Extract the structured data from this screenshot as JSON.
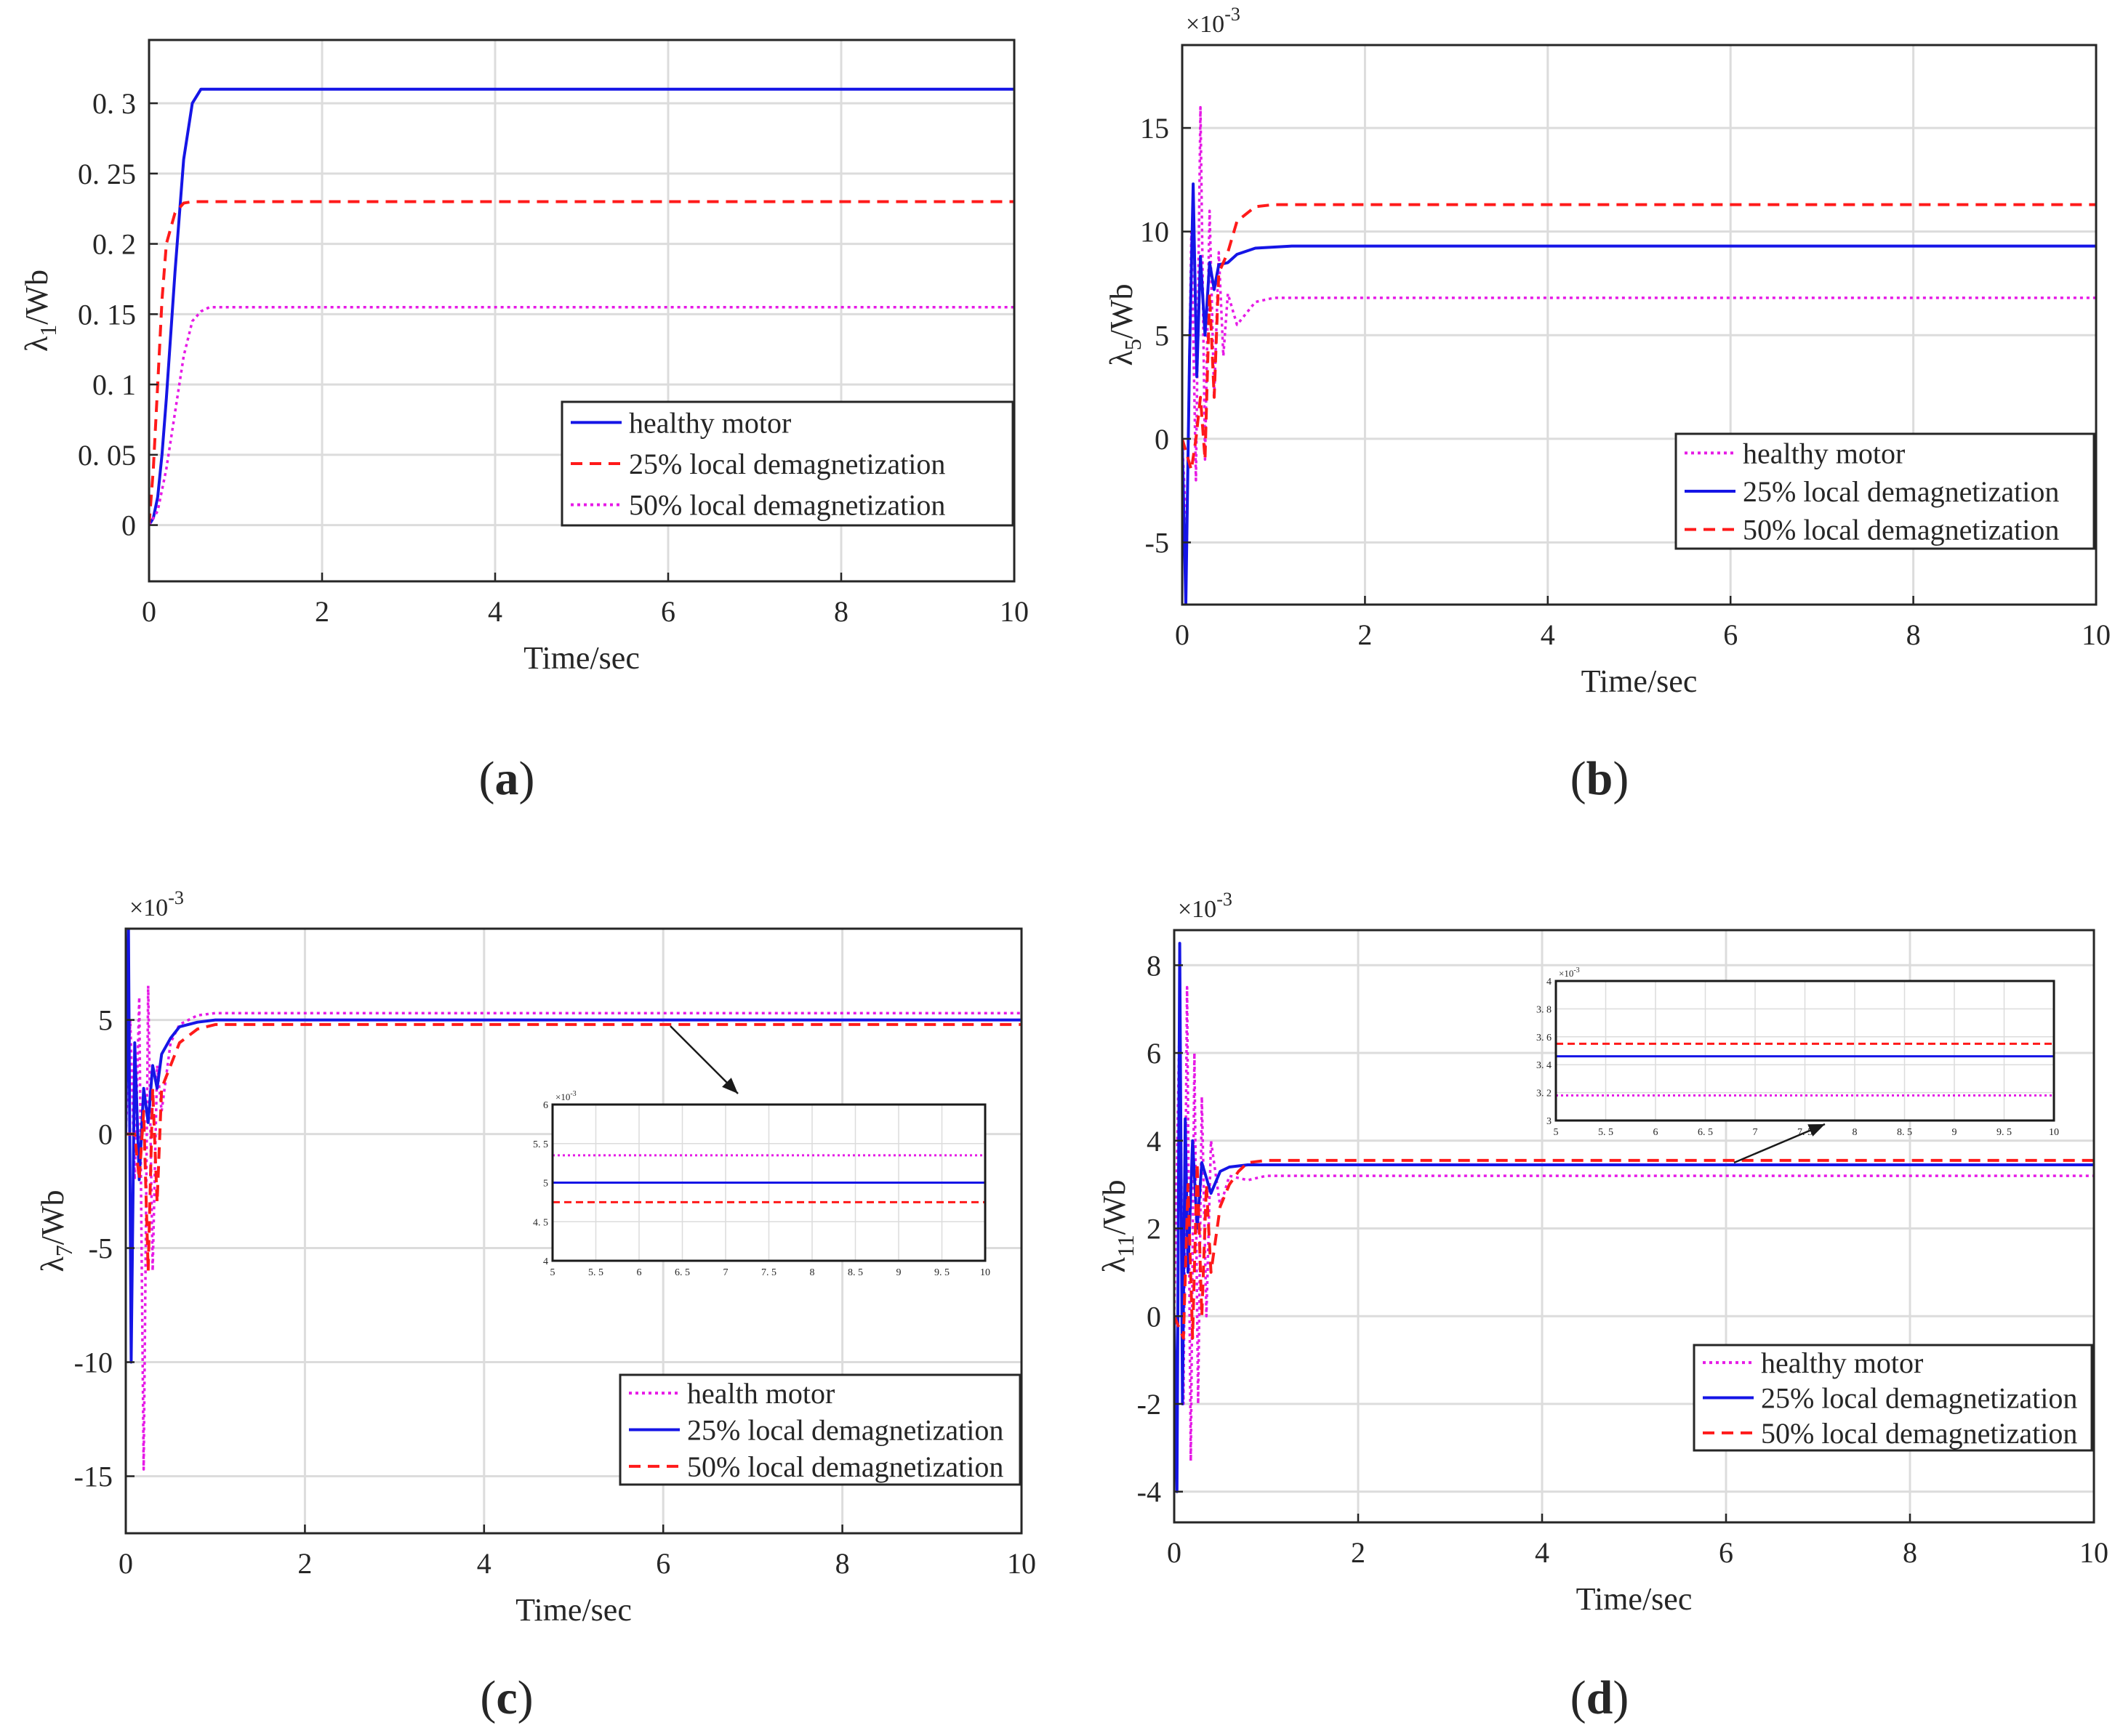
{
  "figure": {
    "panels": [
      {
        "id": "a",
        "label": "(a)",
        "label_letter": "a",
        "chart_data": {
          "type": "line",
          "xlabel": "Time/sec",
          "ylabel": "λ1/Wb",
          "ylabel_main": "λ",
          "ylabel_sub": "1",
          "ylabel_unit": "/Wb",
          "exponent": "",
          "xlim": [
            0,
            10
          ],
          "ylim": [
            -0.04,
            0.345
          ],
          "x_ticks": [
            0,
            2,
            4,
            6,
            8,
            10
          ],
          "x_tick_labels": [
            "0",
            "2",
            "4",
            "6",
            "8",
            "10"
          ],
          "y_ticks": [
            0,
            0.05,
            0.1,
            0.15,
            0.2,
            0.25,
            0.3
          ],
          "y_tick_labels": [
            "0",
            "0. 05",
            "0. 1",
            "0. 15",
            "0. 2",
            "0. 25",
            "0. 3"
          ],
          "grid": true,
          "legend_position": "right",
          "series": [
            {
              "name": "healthy motor",
              "color": "#1515e6",
              "style": "solid",
              "final": 0.31,
              "kind": "smooth",
              "rise": 0.6,
              "x": [
                0,
                0.05,
                0.1,
                0.15,
                0.2,
                0.3,
                0.4,
                0.5,
                0.6,
                1,
                10
              ],
              "y": [
                0,
                0.005,
                0.02,
                0.05,
                0.09,
                0.18,
                0.26,
                0.3,
                0.31,
                0.31,
                0.31
              ]
            },
            {
              "name": "25% local demagnetization",
              "color": "#ff1a1a",
              "style": "dashed",
              "final": 0.23,
              "kind": "smooth",
              "rise": 0.35,
              "x": [
                0,
                0.05,
                0.1,
                0.15,
                0.2,
                0.3,
                0.4,
                0.5,
                1,
                10
              ],
              "y": [
                0,
                0.04,
                0.1,
                0.16,
                0.2,
                0.222,
                0.229,
                0.23,
                0.23,
                0.23
              ]
            },
            {
              "name": "50% local demagnetization",
              "color": "#e61ae6",
              "style": "dotted",
              "final": 0.155,
              "kind": "smooth",
              "rise": 0.6,
              "x": [
                0,
                0.1,
                0.2,
                0.3,
                0.4,
                0.5,
                0.6,
                0.7,
                1,
                10
              ],
              "y": [
                0,
                0.01,
                0.04,
                0.08,
                0.12,
                0.145,
                0.152,
                0.155,
                0.155,
                0.155
              ]
            }
          ]
        }
      },
      {
        "id": "b",
        "label": "(b)",
        "label_letter": "b",
        "chart_data": {
          "type": "line",
          "xlabel": "Time/sec",
          "ylabel": "λ5/Wb",
          "ylabel_main": "λ",
          "ylabel_sub": "5",
          "ylabel_unit": "/Wb",
          "exponent": "×10^-3",
          "exponent_base": "×10",
          "exponent_power": "-3",
          "xlim": [
            0,
            10
          ],
          "ylim": [
            -8,
            19
          ],
          "x_ticks": [
            0,
            2,
            4,
            6,
            8,
            10
          ],
          "x_tick_labels": [
            "0",
            "2",
            "4",
            "6",
            "8",
            "10"
          ],
          "y_ticks": [
            -5,
            0,
            5,
            10,
            15
          ],
          "y_tick_labels": [
            "-5",
            "0",
            "5",
            "10",
            "15"
          ],
          "grid": true,
          "legend_position": "bottom-right",
          "series": [
            {
              "name": "healthy motor",
              "color": "#e61ae6",
              "style": "dotted",
              "final": 6.8,
              "kind": "osc",
              "x": [
                0,
                0.05,
                0.1,
                0.15,
                0.2,
                0.25,
                0.3,
                0.35,
                0.4,
                0.45,
                0.5,
                0.6,
                0.8,
                1,
                10
              ],
              "y": [
                0,
                -5,
                10,
                -2,
                16,
                -1,
                11,
                2,
                9,
                4,
                7,
                5.5,
                6.6,
                6.8,
                6.8
              ]
            },
            {
              "name": "25% local demagnetization",
              "color": "#1515e6",
              "style": "solid",
              "final": 9.3,
              "kind": "osc",
              "x": [
                0,
                0.04,
                0.08,
                0.12,
                0.16,
                0.2,
                0.25,
                0.3,
                0.35,
                0.4,
                0.5,
                0.6,
                0.8,
                1.2,
                10
              ],
              "y": [
                0,
                -8,
                4,
                12.3,
                3,
                8.8,
                5,
                8.5,
                7.2,
                8.4,
                8.5,
                8.9,
                9.2,
                9.3,
                9.3
              ]
            },
            {
              "name": "50% local demagnetization",
              "color": "#ff1a1a",
              "style": "dashed",
              "final": 11.3,
              "kind": "osc",
              "x": [
                0,
                0.1,
                0.15,
                0.2,
                0.25,
                0.3,
                0.35,
                0.4,
                0.5,
                0.6,
                0.8,
                1,
                10
              ],
              "y": [
                0,
                -1.5,
                0,
                2,
                -1,
                7,
                2,
                8,
                9,
                10.5,
                11.2,
                11.3,
                11.3
              ]
            }
          ]
        }
      },
      {
        "id": "c",
        "label": "(c)",
        "label_letter": "c",
        "chart_data": {
          "type": "line",
          "xlabel": "Time/sec",
          "ylabel": "λ7/Wb",
          "ylabel_main": "λ",
          "ylabel_sub": "7",
          "ylabel_unit": "/Wb",
          "exponent": "×10^-3",
          "exponent_base": "×10",
          "exponent_power": "-3",
          "xlim": [
            0,
            10
          ],
          "ylim": [
            -17.5,
            9
          ],
          "x_ticks": [
            0,
            2,
            4,
            6,
            8,
            10
          ],
          "x_tick_labels": [
            "0",
            "2",
            "4",
            "6",
            "8",
            "10"
          ],
          "y_ticks": [
            -15,
            -10,
            -5,
            0,
            5
          ],
          "y_tick_labels": [
            "-15",
            "-10",
            "-5",
            "0",
            "5"
          ],
          "grid": true,
          "legend_position": "bottom-right",
          "series": [
            {
              "name": "health motor",
              "color": "#e61ae6",
              "style": "dotted",
              "final": 5.3,
              "kind": "osc",
              "x": [
                0,
                0.05,
                0.1,
                0.15,
                0.2,
                0.25,
                0.3,
                0.35,
                0.4,
                0.5,
                0.6,
                0.8,
                1,
                10
              ],
              "y": [
                0,
                5,
                -2,
                6,
                -14.7,
                6.5,
                -6,
                3,
                1,
                4,
                4.8,
                5.2,
                5.3,
                5.3
              ]
            },
            {
              "name": "25% local demagnetization",
              "color": "#1515e6",
              "style": "solid",
              "final": 5.0,
              "kind": "osc",
              "x": [
                0,
                0.03,
                0.06,
                0.1,
                0.15,
                0.2,
                0.25,
                0.3,
                0.35,
                0.4,
                0.5,
                0.6,
                0.8,
                1,
                10
              ],
              "y": [
                0,
                9,
                -10,
                4,
                -2,
                2,
                0.5,
                3,
                2,
                3.5,
                4.2,
                4.7,
                4.9,
                5.0,
                5.0
              ]
            },
            {
              "name": "50% local demagnetization",
              "color": "#ff1a1a",
              "style": "dashed",
              "final": 4.8,
              "kind": "osc",
              "x": [
                0,
                0.1,
                0.15,
                0.2,
                0.25,
                0.3,
                0.35,
                0.4,
                0.5,
                0.6,
                0.8,
                1,
                10
              ],
              "y": [
                0,
                0,
                -2,
                1,
                -6,
                2,
                -3,
                2,
                3,
                4,
                4.6,
                4.8,
                4.8
              ]
            }
          ],
          "inset": {
            "xlim": [
              5,
              10
            ],
            "ylim": [
              4,
              6
            ],
            "x_ticks": [
              5,
              5.5,
              6,
              6.5,
              7,
              7.5,
              8,
              8.5,
              9,
              9.5,
              10
            ],
            "x_tick_labels": [
              "5",
              "5. 5",
              "6",
              "6. 5",
              "7",
              "7. 5",
              "8",
              "8. 5",
              "9",
              "9. 5",
              "10"
            ],
            "y_ticks": [
              4,
              4.5,
              5,
              5.5,
              6
            ],
            "y_tick_labels": [
              "4",
              "4. 5",
              "5",
              "5. 5",
              "6"
            ],
            "exponent": "×10^-3",
            "exponent_base": "×10",
            "exponent_power": "-3",
            "levels": [
              5.35,
              5.0,
              4.75
            ]
          }
        }
      },
      {
        "id": "d",
        "label": "(d)",
        "label_letter": "d",
        "chart_data": {
          "type": "line",
          "xlabel": "Time/sec",
          "ylabel": "λ11/Wb",
          "ylabel_main": "λ",
          "ylabel_sub": "11",
          "ylabel_unit": "/Wb",
          "exponent": "×10^-3",
          "exponent_base": "×10",
          "exponent_power": "-3",
          "xlim": [
            0,
            10
          ],
          "ylim": [
            -4.7,
            8.8
          ],
          "x_ticks": [
            0,
            2,
            4,
            6,
            8,
            10
          ],
          "x_tick_labels": [
            "0",
            "2",
            "4",
            "6",
            "8",
            "10"
          ],
          "y_ticks": [
            -4,
            -2,
            0,
            2,
            4,
            6,
            8
          ],
          "y_tick_labels": [
            "-4",
            "-2",
            "0",
            "2",
            "4",
            "6",
            "8"
          ],
          "grid": true,
          "legend_position": "bottom-right",
          "series": [
            {
              "name": "healthy motor",
              "color": "#e61ae6",
              "style": "dotted",
              "final": 3.2,
              "kind": "osc",
              "x": [
                0,
                0.06,
                0.1,
                0.14,
                0.18,
                0.22,
                0.26,
                0.3,
                0.35,
                0.4,
                0.5,
                0.6,
                0.8,
                1,
                10
              ],
              "y": [
                0,
                7,
                -2,
                7.5,
                -3.3,
                6,
                -2,
                5,
                0,
                4,
                2.5,
                3.2,
                3.1,
                3.2,
                3.2
              ]
            },
            {
              "name": "25% local demagnetization",
              "color": "#1515e6",
              "style": "solid",
              "final": 3.45,
              "kind": "osc",
              "x": [
                0,
                0.03,
                0.06,
                0.09,
                0.12,
                0.15,
                0.2,
                0.25,
                0.3,
                0.4,
                0.5,
                0.6,
                0.8,
                1,
                10
              ],
              "y": [
                0,
                -4,
                8.5,
                -2,
                4.5,
                1,
                4,
                2,
                3.5,
                2.8,
                3.3,
                3.4,
                3.45,
                3.45,
                3.45
              ]
            },
            {
              "name": "50% local demagnetization",
              "color": "#ff1a1a",
              "style": "dashed",
              "final": 3.55,
              "kind": "osc",
              "x": [
                0,
                0.1,
                0.15,
                0.2,
                0.25,
                0.3,
                0.35,
                0.4,
                0.5,
                0.6,
                0.7,
                0.8,
                1,
                10
              ],
              "y": [
                0,
                -0.5,
                3,
                -0.5,
                3.5,
                0,
                3,
                1,
                2.5,
                3,
                3.3,
                3.5,
                3.55,
                3.55
              ]
            }
          ],
          "inset": {
            "xlim": [
              5,
              10
            ],
            "ylim": [
              3,
              4
            ],
            "x_ticks": [
              5,
              5.5,
              6,
              6.5,
              7,
              7.5,
              8,
              8.5,
              9,
              9.5,
              10
            ],
            "x_tick_labels": [
              "5",
              "5. 5",
              "6",
              "6. 5",
              "7",
              "7. 5",
              "8",
              "8. 5",
              "9",
              "9. 5",
              "10"
            ],
            "y_ticks": [
              3,
              3.2,
              3.4,
              3.6,
              3.8,
              4
            ],
            "y_tick_labels": [
              "3",
              "3. 2",
              "3. 4",
              "3. 6",
              "3. 8",
              "4"
            ],
            "exponent": "×10^-3",
            "exponent_base": "×10",
            "exponent_power": "-3",
            "levels": [
              3.18,
              3.46,
              3.55
            ]
          }
        }
      }
    ]
  }
}
